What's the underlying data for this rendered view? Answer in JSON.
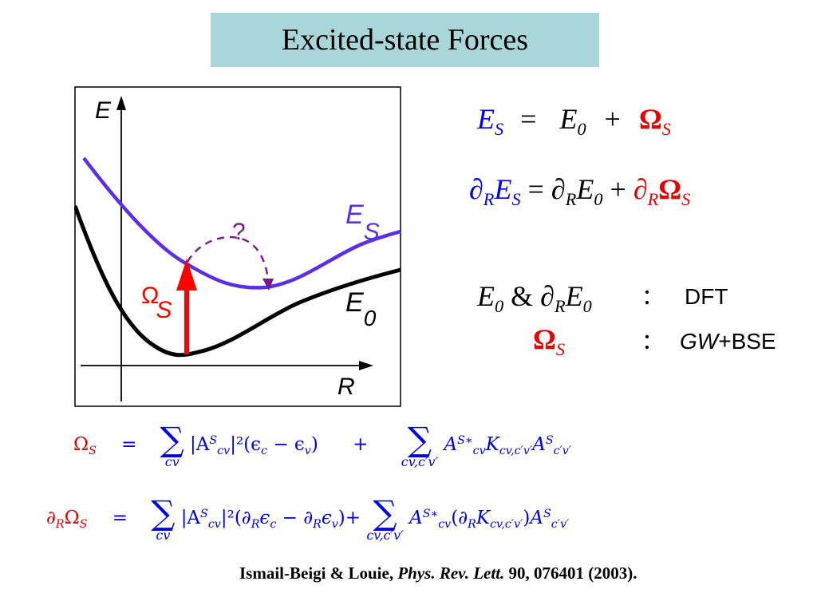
{
  "slide": {
    "title": "Excited-state Forces",
    "plot": {
      "y_axis_label": "E",
      "x_axis_label": "R",
      "upper_curve_label_main": "E",
      "upper_curve_label_sub": "S",
      "lower_curve_label_main": "E",
      "lower_curve_label_sub": "0",
      "arrow_label_main": "Ω",
      "arrow_label_sub": "S",
      "question_mark": "?",
      "colors": {
        "upper_curve": "#5b2ee8",
        "lower_curve": "#000000",
        "arrow": "#ff0000",
        "dashed": "#7a1a8a"
      }
    },
    "eq1": {
      "lhs": "E",
      "lhs_sub": "S",
      "eq": "=",
      "mid": "E",
      "mid_sub": "0",
      "plus": "+",
      "rhs": "Ω",
      "rhs_sub": "S"
    },
    "eq2": {
      "d": "∂",
      "d_sub": "R",
      "lhs": "E",
      "lhs_sub": "S",
      "eq": " = ",
      "mid": "E",
      "mid_sub": "0",
      "plus": " + ",
      "rhs": "Ω",
      "rhs_sub": "S"
    },
    "method1": {
      "lhs_a": "E",
      "lhs_a_sub": "0",
      "amp": " & ",
      "d": "∂",
      "d_sub": "R",
      "lhs_b": "E",
      "lhs_b_sub": "0",
      "colon": ":",
      "method": "DFT"
    },
    "method2": {
      "lhs": "Ω",
      "lhs_sub": "S",
      "colon": ":",
      "method_italic": "GW",
      "method_rest": "+BSE"
    },
    "formula1": {
      "lhs": "Ω",
      "lhs_sub": "S",
      "eq": "=",
      "sum1_lim": "cv",
      "term1": "|A",
      "term1_sup": "S",
      "term1_sub": "cv",
      "term1_rest": "|²(ϵ",
      "term1_c": "c",
      "term1_minus": " − ϵ",
      "term1_v": "v",
      "term1_close": ")",
      "plus": "+",
      "sum2_lim": "cv,c′v′",
      "term2": "A",
      "term2_sup": "S∗",
      "term2_sub": "cv",
      "term2_k": "K",
      "term2_ksub": "cv,c′v′",
      "term2_a": "A",
      "term2_asup": "S",
      "term2_asub": "c′v′"
    },
    "formula2": {
      "d": "∂",
      "d_sub": "R",
      "lhs": "Ω",
      "lhs_sub": "S",
      "eq": "=",
      "sum1_lim": "cv",
      "term1": "|A",
      "term1_sup": "S",
      "term1_sub": "cv",
      "term1_rest": "|²(∂",
      "term1_r1": "R",
      "term1_e1": "ϵ",
      "term1_c": "c",
      "term1_minus": " − ∂",
      "term1_r2": "R",
      "term1_e2": "ϵ",
      "term1_v": "v",
      "term1_close": ")+",
      "sum2_lim": "cv,c′v′",
      "term2": "A",
      "term2_sup": "S∗",
      "term2_sub": "cv",
      "term2_open": "(∂",
      "term2_r": "R",
      "term2_k": "K",
      "term2_ksub": "cv,c′v′",
      "term2_close": ")",
      "term2_a": "A",
      "term2_asup": "S",
      "term2_asub": "c′v′"
    },
    "citation": {
      "authors": "Ismail-Beigi & Louie, ",
      "journal": "Phys. Rev. Lett.",
      "rest": " 90, 076401 (2003)."
    }
  }
}
